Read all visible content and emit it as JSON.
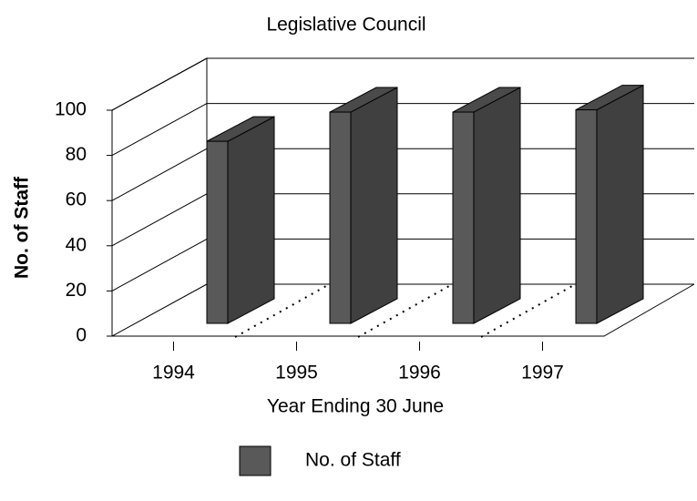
{
  "chart_data": {
    "type": "bar",
    "title": "Legislative Council",
    "categories": [
      "1994",
      "1995",
      "1996",
      "1997"
    ],
    "series": [
      {
        "name": "No. of Staff",
        "color": "#595959",
        "values": [
          81,
          94,
          94,
          95
        ]
      }
    ],
    "x_label": "Year Ending 30 June",
    "y_label": "No. of Staff",
    "ylim": [
      0,
      100
    ],
    "yticks": [
      0,
      20,
      40,
      60,
      80,
      100
    ],
    "grid": true,
    "legend": "bottom"
  }
}
